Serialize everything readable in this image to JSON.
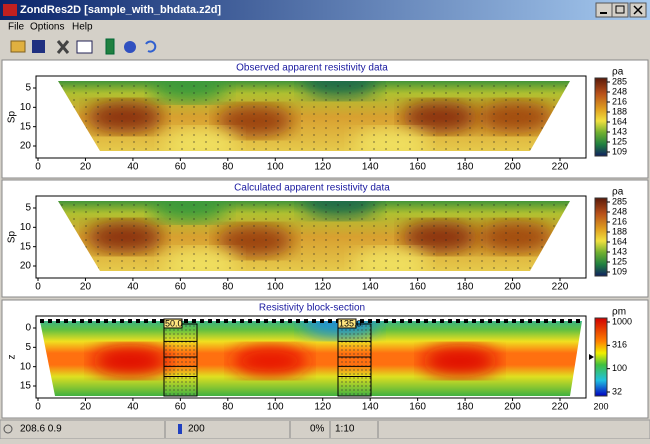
{
  "window": {
    "title": "ZondRes2D [sample_with_bhdata.z2d]"
  },
  "menu": [
    "File",
    "Options",
    "Help"
  ],
  "panels": [
    {
      "title": "Observed apparent resistivity data",
      "y_label": "Sp",
      "xticks": [
        0,
        20,
        40,
        60,
        80,
        100,
        120,
        140,
        160,
        180,
        200,
        220
      ],
      "yticks": [
        5,
        10,
        15,
        20
      ],
      "colorbar_unit": "ρa",
      "colorbar_ticks": [
        285,
        248,
        216,
        188,
        164,
        143,
        125,
        109
      ]
    },
    {
      "title": "Calculated apparent resistivity data",
      "y_label": "Sp",
      "xticks": [
        0,
        20,
        40,
        60,
        80,
        100,
        120,
        140,
        160,
        180,
        200,
        220
      ],
      "yticks": [
        5,
        10,
        15,
        20
      ],
      "colorbar_unit": "ρa",
      "colorbar_ticks": [
        285,
        248,
        216,
        188,
        164,
        143,
        125,
        109
      ]
    },
    {
      "title": "Resistivity block-section",
      "y_label": "z",
      "xticks": [
        0,
        20,
        40,
        60,
        80,
        100,
        120,
        140,
        160,
        180,
        200,
        220
      ],
      "yticks": [
        0,
        5,
        10,
        15
      ],
      "colorbar_unit": "ρm",
      "colorbar_ticks": [
        1000,
        316,
        100,
        32
      ],
      "colorbar_caption": "200",
      "boreholes": [
        "50.0",
        "135.0"
      ]
    }
  ],
  "status": [
    "208.6 0.9",
    "200",
    "0%",
    "1:10"
  ]
}
